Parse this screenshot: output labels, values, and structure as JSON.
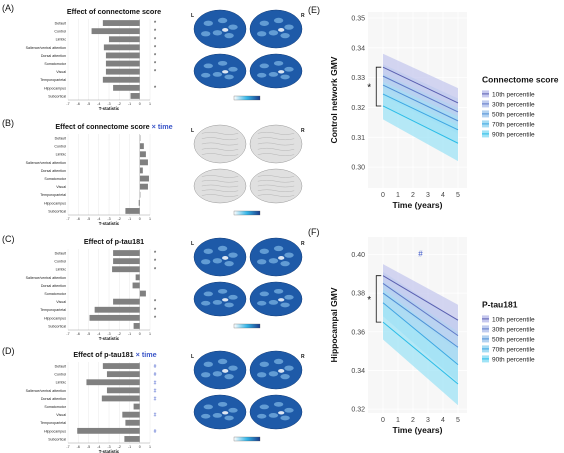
{
  "colors": {
    "bar": "#808080",
    "accent": "#3a55c8",
    "brain_blue": "#1e5aa8",
    "brain_gray": "#d0d0d0",
    "line_palette": [
      "#5a5fb0",
      "#5f78c7",
      "#4f8fd6",
      "#3da7e3",
      "#2bbde8"
    ],
    "band_palette": [
      "#c6c8ee",
      "#c0ccef",
      "#b3d2f0",
      "#a6dcf3",
      "#9fe3f6"
    ]
  },
  "panel_labels": [
    "(A)",
    "(B)",
    "(C)",
    "(D)",
    "(E)",
    "(F)"
  ],
  "brain_labels": {
    "left": "L",
    "right": "R"
  },
  "bar_panels": [
    {
      "label": "(A)",
      "title": "Effect of connectome score",
      "title_suffix": "",
      "brains_gray": false
    },
    {
      "label": "(B)",
      "title": "Effect of connectome score",
      "title_suffix": "× time",
      "brains_gray": true
    },
    {
      "label": "(C)",
      "title": "Effect of p-tau181",
      "title_suffix": "",
      "brains_gray": false
    },
    {
      "label": "(D)",
      "title": "Effect of p-tau181",
      "title_suffix": "× time",
      "brains_gray": false
    }
  ],
  "line_panels": [
    {
      "label": "(E)",
      "legend_title": "Connectome score"
    },
    {
      "label": "(F)",
      "legend_title": "P-tau181"
    }
  ],
  "chart_data": [
    {
      "type": "bar",
      "orientation": "horizontal",
      "title": "Effect of connectome score",
      "xlabel": "T-statistic",
      "categories": [
        "Default",
        "Control",
        "Limbic",
        "Salience/ventral attention",
        "Dorsal attention",
        "Somatomotor",
        "Visual",
        "Temporoparietal",
        "Hippocampus",
        "Subcortical"
      ],
      "values": [
        -3.6,
        -4.7,
        -3.0,
        -3.5,
        -3.3,
        -3.3,
        -3.3,
        -3.6,
        -2.6,
        -0.9
      ],
      "markers": [
        "*",
        "*",
        "*",
        "*",
        "*",
        "*",
        "*",
        "",
        "*",
        ""
      ],
      "xlim": [
        -7,
        1
      ],
      "xticks": [
        -7,
        -6,
        -5,
        -4,
        -3,
        -2,
        -1,
        0,
        1
      ],
      "grid": true
    },
    {
      "type": "bar",
      "orientation": "horizontal",
      "title": "Effect of connectome score × time",
      "xlabel": "T-statistic",
      "categories": [
        "Default",
        "Control",
        "Limbic",
        "Salience/ventral attention",
        "Dorsal attention",
        "Somatomotor",
        "Visual",
        "Temporoparietal",
        "Hippocampus",
        "Subcortical"
      ],
      "values": [
        0.0,
        0.4,
        0.6,
        0.8,
        0.3,
        0.9,
        0.8,
        0.0,
        -0.1,
        -1.4
      ],
      "markers": [
        "",
        "",
        "",
        "",
        "",
        "",
        "",
        "",
        "",
        ""
      ],
      "xlim": [
        -7,
        1
      ],
      "xticks": [
        -7,
        -6,
        -5,
        -4,
        -3,
        -2,
        -1,
        0,
        1
      ],
      "grid": true
    },
    {
      "type": "bar",
      "orientation": "horizontal",
      "title": "Effect of p-tau181",
      "xlabel": "T-statistic",
      "categories": [
        "Default",
        "Control",
        "Limbic",
        "Salience/ventral attention",
        "Dorsal attention",
        "Somatomotor",
        "Visual",
        "Temporoparietal",
        "Hippocampus",
        "Subcortical"
      ],
      "values": [
        -2.6,
        -2.6,
        -2.7,
        -0.4,
        -0.7,
        0.6,
        -2.6,
        -4.4,
        -4.9,
        -0.6
      ],
      "markers": [
        "*",
        "*",
        "*",
        "",
        "",
        "",
        "*",
        "*",
        "*",
        ""
      ],
      "xlim": [
        -7,
        1
      ],
      "xticks": [
        -7,
        -6,
        -5,
        -4,
        -3,
        -2,
        -1,
        0,
        1
      ],
      "grid": true
    },
    {
      "type": "bar",
      "orientation": "horizontal",
      "title": "Effect of p-tau181 × time",
      "xlabel": "T-statistic",
      "categories": [
        "Default",
        "Control",
        "Limbic",
        "Salience/ventral attention",
        "Dorsal attention",
        "Somatomotor",
        "Visual",
        "Temporoparietal",
        "Hippocampus",
        "Subcortical"
      ],
      "values": [
        -3.6,
        -3.2,
        -5.2,
        -3.2,
        -3.7,
        -0.6,
        -1.7,
        -1.4,
        -6.1,
        -1.5
      ],
      "markers": [
        "#",
        "#",
        "#",
        "#",
        "#",
        "",
        "#",
        "",
        "#",
        ""
      ],
      "xlim": [
        -7,
        1
      ],
      "xticks": [
        -7,
        -6,
        -5,
        -4,
        -3,
        -2,
        -1,
        0,
        1
      ],
      "grid": true
    },
    {
      "type": "line",
      "xlabel": "Time (years)",
      "ylabel": "Control network GMV",
      "x": [
        0,
        5
      ],
      "xlim": [
        -1,
        5.6
      ],
      "xticks": [
        0,
        1,
        2,
        3,
        4,
        5
      ],
      "ylim": [
        0.293,
        0.352
      ],
      "yticks": [
        0.3,
        0.31,
        0.32,
        0.33,
        0.34,
        0.35
      ],
      "ytick_labels": [
        "0.30",
        "0.31",
        "0.32",
        "0.33",
        "0.34",
        "0.35"
      ],
      "legend_title": "Connectome score",
      "legend_position": "right",
      "bracket_label": "*",
      "grid": true,
      "series": [
        {
          "name": "10th percentile",
          "values": [
            0.3335,
            0.3215
          ],
          "ci": [
            0.0045,
            0.005
          ]
        },
        {
          "name": "30th percentile",
          "values": [
            0.3305,
            0.3185
          ],
          "ci": [
            0.004,
            0.0045
          ]
        },
        {
          "name": "50th percentile",
          "values": [
            0.3275,
            0.3155
          ],
          "ci": [
            0.0038,
            0.0043
          ]
        },
        {
          "name": "70th percentile",
          "values": [
            0.3245,
            0.3125
          ],
          "ci": [
            0.004,
            0.0045
          ]
        },
        {
          "name": "90th percentile",
          "values": [
            0.3205,
            0.308
          ],
          "ci": [
            0.0045,
            0.006
          ]
        }
      ]
    },
    {
      "type": "line",
      "xlabel": "Time (years)",
      "ylabel": "Hippocampal GMV",
      "x": [
        0,
        5
      ],
      "xlim": [
        -1,
        5.6
      ],
      "xticks": [
        0,
        1,
        2,
        3,
        4,
        5
      ],
      "ylim": [
        0.318,
        0.409
      ],
      "yticks": [
        0.32,
        0.34,
        0.36,
        0.38,
        0.4
      ],
      "ytick_labels": [
        "0.32",
        "0.34",
        "0.36",
        "0.38",
        "0.40"
      ],
      "legend_title": "P-tau181",
      "legend_position": "right",
      "bracket_label": "*",
      "annotation": "#",
      "grid": true,
      "series": [
        {
          "name": "10th percentile",
          "values": [
            0.389,
            0.366
          ],
          "ci": [
            0.006,
            0.008
          ]
        },
        {
          "name": "30th percentile",
          "values": [
            0.385,
            0.358
          ],
          "ci": [
            0.006,
            0.008
          ]
        },
        {
          "name": "50th percentile",
          "values": [
            0.38,
            0.352
          ],
          "ci": [
            0.006,
            0.008
          ]
        },
        {
          "name": "70th percentile",
          "values": [
            0.375,
            0.343
          ],
          "ci": [
            0.007,
            0.009
          ]
        },
        {
          "name": "90th percentile",
          "values": [
            0.365,
            0.333
          ],
          "ci": [
            0.009,
            0.011
          ]
        }
      ]
    }
  ]
}
